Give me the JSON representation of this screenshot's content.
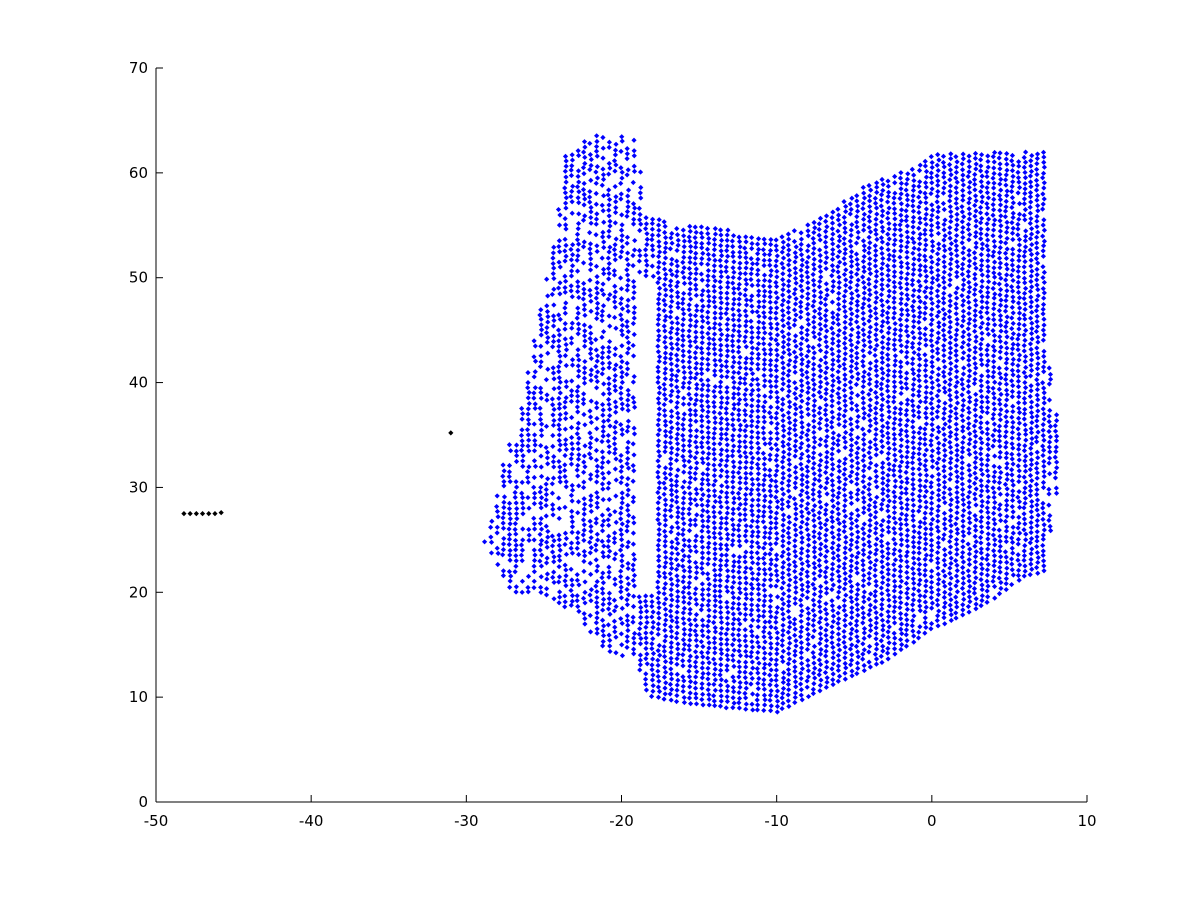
{
  "chart_data": {
    "type": "scatter",
    "title": "",
    "xlabel": "",
    "ylabel": "",
    "xlim": [
      -50,
      10
    ],
    "ylim": [
      0,
      70
    ],
    "grid": false,
    "box": false,
    "xticks": [
      -50,
      -40,
      -30,
      -20,
      -10,
      0,
      10
    ],
    "yticks": [
      0,
      10,
      20,
      30,
      40,
      50,
      60,
      70
    ],
    "xtick_labels": [
      "-50",
      "-40",
      "-30",
      "-20",
      "-10",
      "0",
      "10"
    ],
    "ytick_labels": [
      "0",
      "10",
      "20",
      "30",
      "40",
      "50",
      "60",
      "70"
    ],
    "marker": "diamond",
    "series": [
      {
        "color": "#0000ff",
        "points_description": "dense grid of points (approx. spacing 0.4 in x, 0.5 in y)",
        "regions": [
          {
            "x": [
              -28.8,
              -23.0
            ],
            "y": [
              20.0,
              64.0
            ],
            "sparse": true
          },
          {
            "x": [
              -23.0,
              -18.5
            ],
            "y": [
              14.0,
              64.3
            ],
            "sparse": true
          },
          {
            "x": [
              -18.5,
              -15.5
            ],
            "y": [
              10.0,
              55.0
            ],
            "sparse": false
          },
          {
            "x": [
              -15.5,
              -10.0
            ],
            "y": [
              8.7,
              54.0
            ],
            "sparse": false
          },
          {
            "x": [
              -10.0,
              0.0
            ],
            "y": [
              8.7,
              59.0
            ],
            "sparse": false
          },
          {
            "x": [
              0.0,
              7.2
            ],
            "y": [
              16.5,
              62.0
            ],
            "sparse": false
          },
          {
            "x": [
              7.2,
              8.3
            ],
            "y": [
              27.0,
              35.0
            ],
            "sparse": true
          }
        ]
      },
      {
        "color": "#000000",
        "points": [
          [
            -48.2,
            27.5
          ],
          [
            -47.8,
            27.5
          ],
          [
            -47.4,
            27.5
          ],
          [
            -47.0,
            27.5
          ],
          [
            -46.6,
            27.5
          ],
          [
            -46.2,
            27.5
          ],
          [
            -45.8,
            27.6
          ],
          [
            -31.0,
            35.2
          ]
        ]
      }
    ]
  }
}
